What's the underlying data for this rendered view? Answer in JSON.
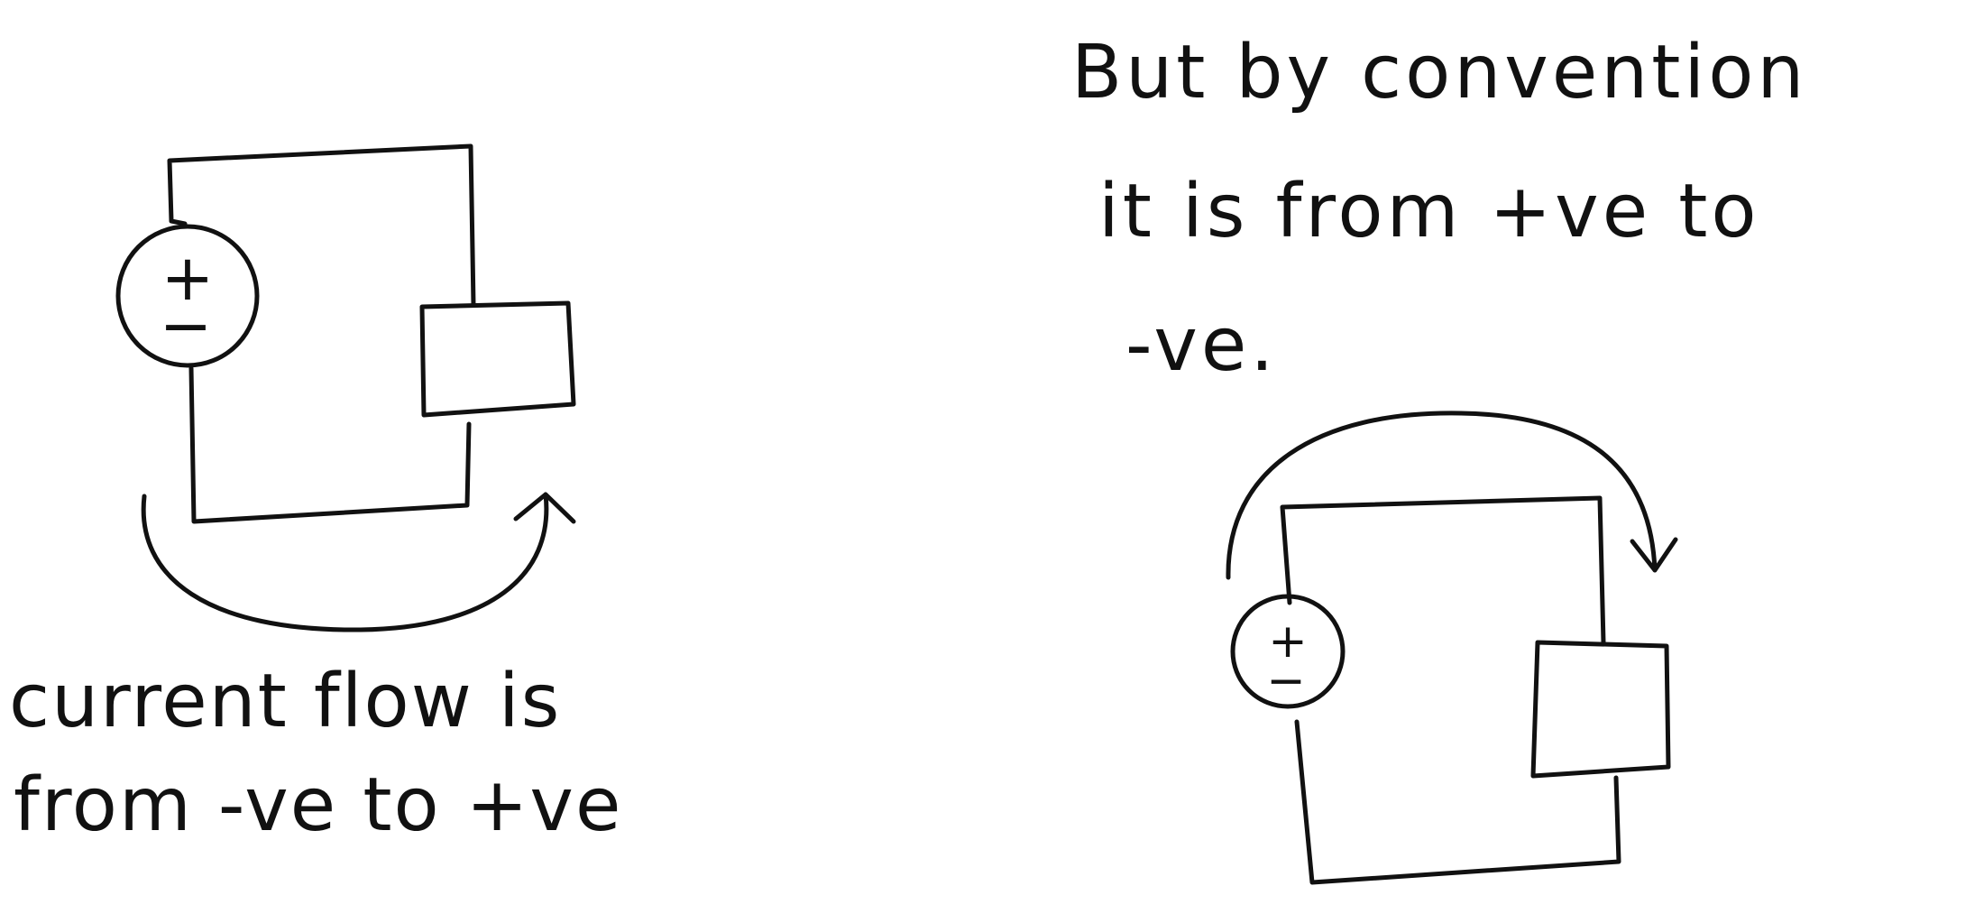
{
  "left_note": {
    "line1": "current flow is",
    "line2": "from -ve to +ve"
  },
  "right_note": {
    "line1": "But by convention",
    "line2": "it is from +ve to",
    "line3": "-ve."
  },
  "source_left": {
    "plus": "+",
    "minus": "−"
  },
  "source_right": {
    "plus": "+",
    "minus": "−"
  }
}
